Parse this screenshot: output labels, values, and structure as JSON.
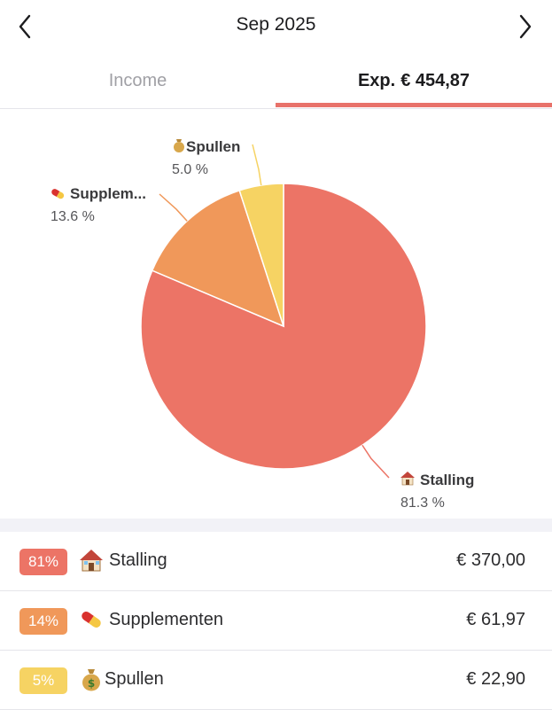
{
  "header": {
    "month": "Sep 2025"
  },
  "tabs": {
    "income": "Income",
    "expense_prefix": "Exp.",
    "expense_total": "€ 454,87"
  },
  "colors": {
    "accent": "#e8726a",
    "stalling": "#ec7466",
    "supplementen": "#f0985a",
    "spullen": "#f6d363"
  },
  "chart_data": {
    "type": "pie",
    "slices": [
      {
        "name": "Stalling",
        "icon": "house-icon",
        "value": 81.3,
        "label": "Stalling",
        "percent_label": "81.3 %"
      },
      {
        "name": "Supplementen",
        "icon": "pill-icon",
        "value": 13.6,
        "label": "Supplem...",
        "percent_label": "13.6 %"
      },
      {
        "name": "Spullen",
        "icon": "money-bag-icon",
        "value": 5.0,
        "label": "Spullen",
        "percent_label": "5.0 %"
      }
    ]
  },
  "list": {
    "items": [
      {
        "badge": "81%",
        "icon": "house-icon",
        "name": "Stalling",
        "amount": "€ 370,00"
      },
      {
        "badge": "14%",
        "icon": "pill-icon",
        "name": "Supplementen",
        "amount": "€ 61,97"
      },
      {
        "badge": "5%",
        "icon": "money-bag-icon",
        "name": "Spullen",
        "amount": "€ 22,90"
      }
    ]
  }
}
